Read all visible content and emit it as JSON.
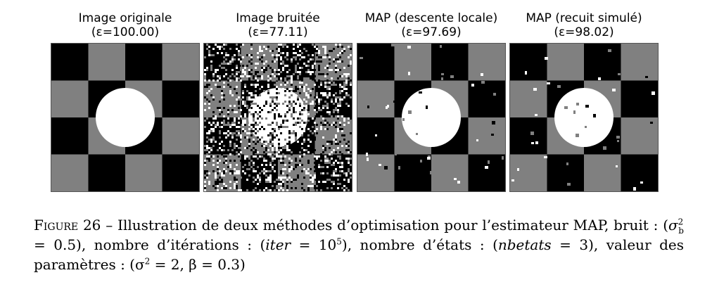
{
  "figure": {
    "panels": [
      {
        "title": "Image originale",
        "epsilon": "(ε=100.00)",
        "variant": "original"
      },
      {
        "title": "Image bruitée",
        "epsilon": "(ε=77.11)",
        "variant": "noisy"
      },
      {
        "title": "MAP (descente locale)",
        "epsilon": "(ε=97.69)",
        "variant": "local"
      },
      {
        "title": "MAP (recuit simulé)",
        "epsilon": "(ε=98.02)",
        "variant": "annealing"
      }
    ],
    "colors": {
      "black": "#000000",
      "gray": "#808080",
      "white": "#ffffff"
    },
    "caption": {
      "label": "Figure 26",
      "sep": " – ",
      "text1": "Illustration de deux méthodes d’optimisation pour l’estimateur MAP, bruit : (",
      "sigma_b": "σ",
      "sigma_b_sup": "2",
      "sigma_b_sub": "b",
      "eq1": " = 0.5), nombre d’itérations : (",
      "iter_var": "iter",
      "eq2": " = 10",
      "iter_exp": "5",
      "text2": "), nombre d’états : (",
      "nb_var": "nbetats",
      "eq3": " = 3), valeur des paramètres : (σ",
      "sigma_sup": "2",
      "eq4": " = 2, β = 0.3)"
    }
  }
}
